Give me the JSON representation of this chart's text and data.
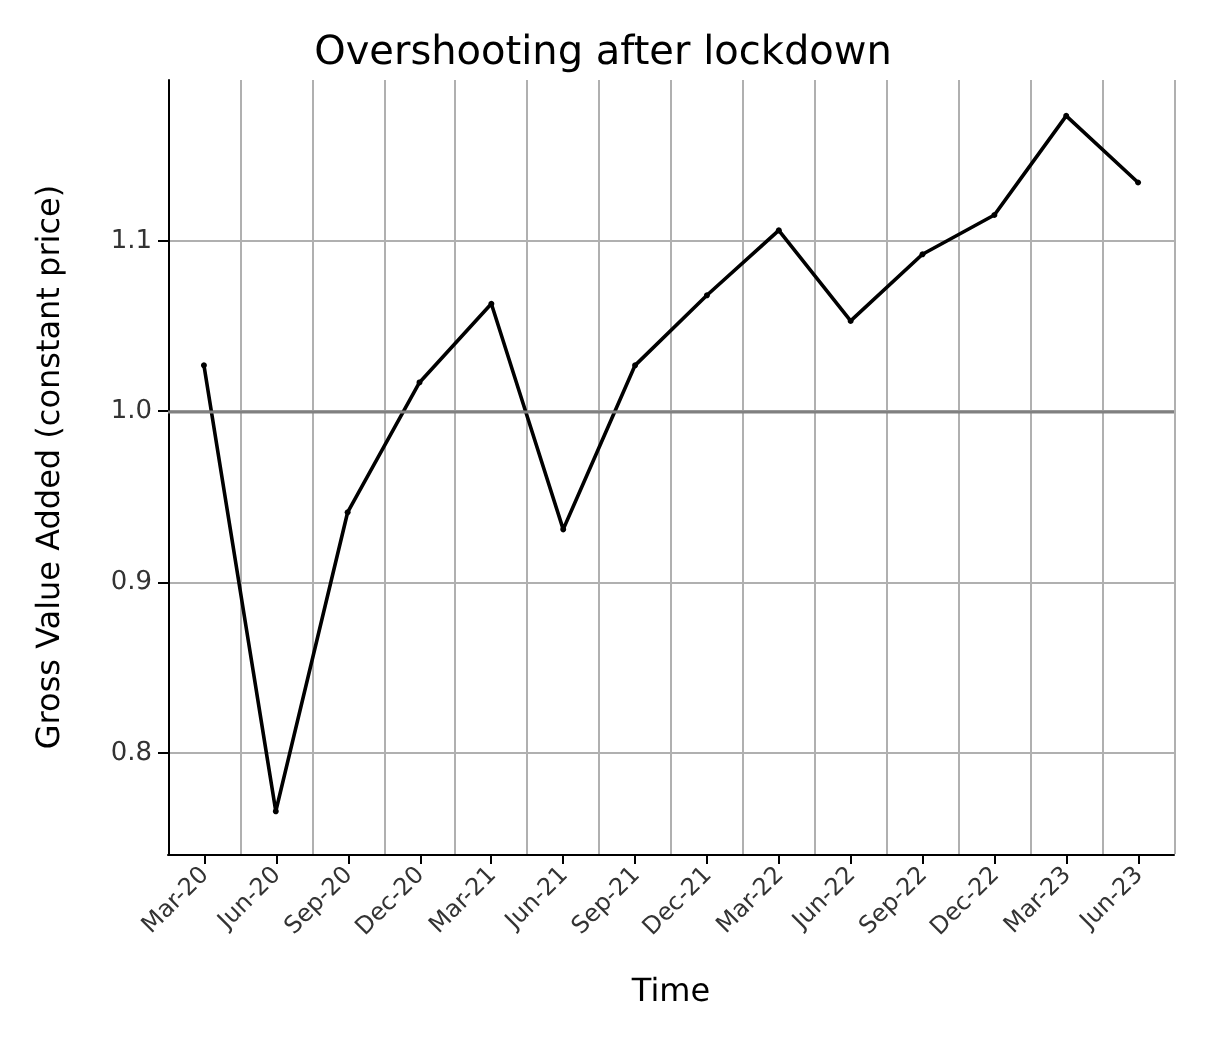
{
  "chart_data": {
    "type": "line",
    "title": "Overshooting after lockdown",
    "xlabel": "Time",
    "ylabel": "Gross Value Added (constant price)",
    "categories": [
      "Mar-20",
      "Jun-20",
      "Sep-20",
      "Dec-20",
      "Mar-21",
      "Jun-21",
      "Sep-21",
      "Dec-21",
      "Mar-22",
      "Jun-22",
      "Sep-22",
      "Dec-22",
      "Mar-23",
      "Jun-23"
    ],
    "series": [
      {
        "color": "#000000",
        "values": [
          1.027,
          0.766,
          0.941,
          1.017,
          1.063,
          0.931,
          1.027,
          1.068,
          1.106,
          1.053,
          1.092,
          1.115,
          1.173,
          1.134
        ]
      }
    ],
    "ylim": [
      0.741,
      1.194
    ],
    "yticks": [
      {
        "value": 0.8,
        "label": "0.8"
      },
      {
        "value": 0.9,
        "label": "0.9"
      },
      {
        "value": 1.0,
        "label": "1.0"
      },
      {
        "value": 1.1,
        "label": "1.1"
      }
    ],
    "grid": true,
    "marker": "circle",
    "line_style": "solid",
    "ref_lines": [
      {
        "axis": "y",
        "value": 1.0,
        "color": "#808080"
      }
    ]
  }
}
